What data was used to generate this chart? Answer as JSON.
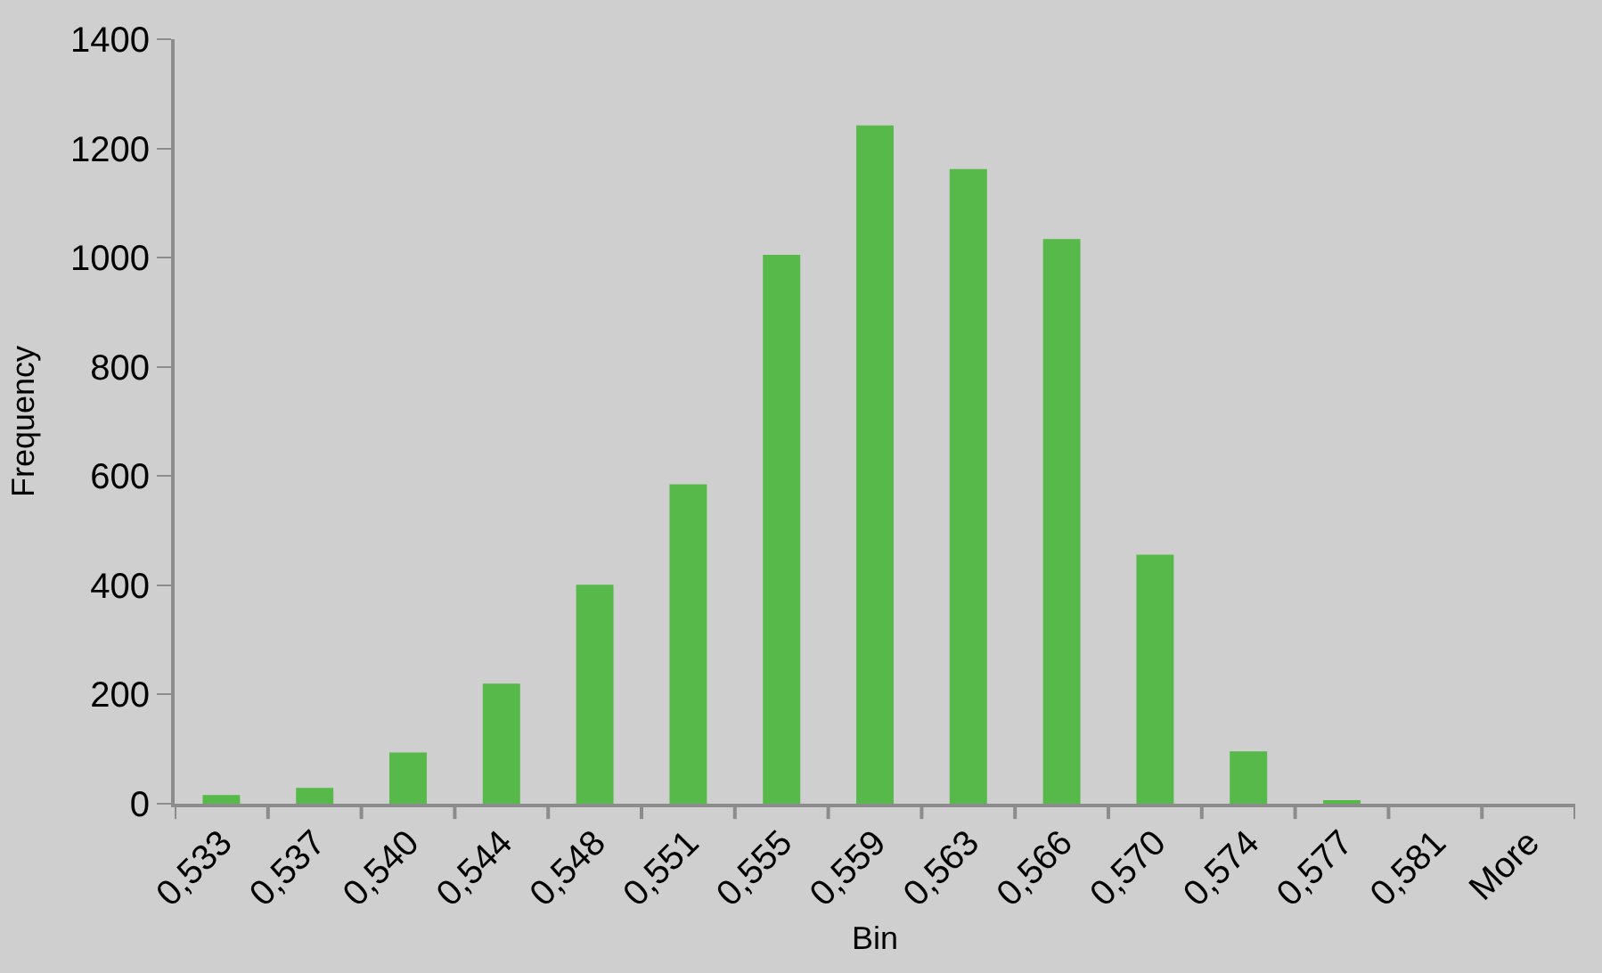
{
  "chart_data": {
    "type": "bar",
    "xlabel": "Bin",
    "ylabel": "Frequency",
    "categories": [
      "0,533",
      "0,537",
      "0,540",
      "0,544",
      "0,548",
      "0,551",
      "0,555",
      "0,559",
      "0,563",
      "0,566",
      "0,570",
      "0,574",
      "0,577",
      "0,581",
      "More"
    ],
    "values": [
      16,
      29,
      94,
      220,
      401,
      585,
      1005,
      1242,
      1162,
      1034,
      456,
      96,
      6,
      0,
      0
    ],
    "color": "#56b94a",
    "ylim": [
      0,
      1400
    ],
    "yticks": [
      0,
      200,
      400,
      600,
      800,
      1000,
      1200,
      1400
    ],
    "grid": false
  }
}
